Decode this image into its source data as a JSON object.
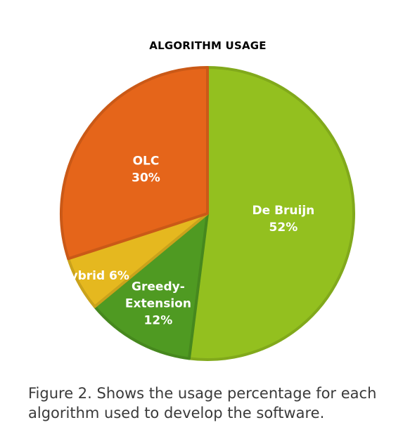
{
  "chart_data": {
    "type": "pie",
    "title": "ALGORITHM USAGE",
    "slices": [
      {
        "label": "De Bruijn",
        "value": 52,
        "value_label": "52%",
        "color": "#93c01f"
      },
      {
        "label": "Greedy-Extension",
        "value": 12,
        "value_label": "12%",
        "color": "#4f9a22"
      },
      {
        "label": "Hybrid",
        "value": 6,
        "value_label": "6%",
        "color": "#e5b81f"
      },
      {
        "label": "OLC",
        "value": 30,
        "value_label": "30%",
        "color": "#e5651a"
      }
    ]
  },
  "caption": {
    "line1": "Figure 2. Shows the usage percentage for each",
    "line2": "algorithm used to develop the software."
  }
}
